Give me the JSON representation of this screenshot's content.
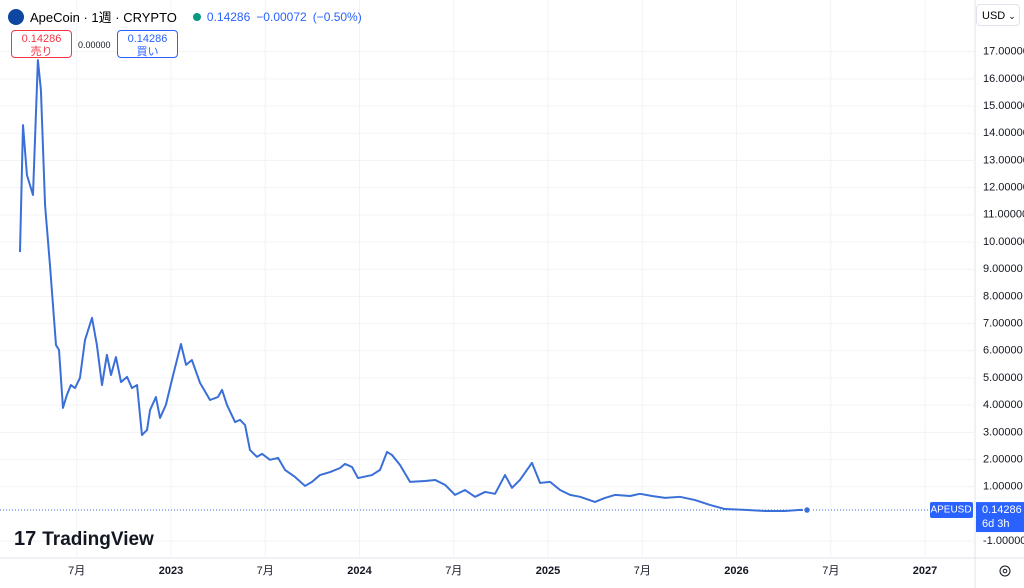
{
  "header": {
    "symbol": "ApeCoin · 1週 · CRYPTO",
    "price": "0.14286",
    "change": "−0.00072",
    "change_pct": "(−0.50%)"
  },
  "toolbar": {
    "sell_price": "0.14286",
    "sell_label": "売り",
    "spread": "0.00000",
    "buy_price": "0.14286",
    "buy_label": "買い",
    "currency": "USD"
  },
  "branding": "TradingView",
  "countdown": "6d 3h",
  "chart_data": {
    "type": "line",
    "x": [
      2022.199,
      2022.215,
      2022.236,
      2022.268,
      2022.294,
      2022.31,
      2022.332,
      2022.358,
      2022.39,
      2022.406,
      2022.427,
      2022.448,
      2022.469,
      2022.491,
      2022.517,
      2022.544,
      2022.581,
      2022.607,
      2022.634,
      2022.66,
      2022.682,
      2022.708,
      2022.735,
      2022.767,
      2022.793,
      2022.82,
      2022.846,
      2022.873,
      2022.889,
      2022.92,
      2022.942,
      2022.973,
      2023.005,
      2023.053,
      2023.08,
      2023.111,
      2023.154,
      2023.207,
      2023.249,
      2023.271,
      2023.297,
      2023.34,
      2023.366,
      2023.393,
      2023.419,
      2023.456,
      2023.483,
      2023.525,
      2023.568,
      2023.605,
      2023.658,
      2023.711,
      2023.748,
      2023.79,
      2023.844,
      2023.897,
      2023.923,
      2023.96,
      2023.992,
      2024.066,
      2024.109,
      2024.146,
      2024.172,
      2024.215,
      2024.268,
      2024.347,
      2024.401,
      2024.454,
      2024.507,
      2024.56,
      2024.613,
      2024.666,
      2024.719,
      2024.772,
      2024.809,
      2024.851,
      2024.915,
      2024.958,
      2025.011,
      2025.064,
      2025.117,
      2025.17,
      2025.249,
      2025.302,
      2025.355,
      2025.435,
      2025.488,
      2025.552,
      2025.621,
      2025.7,
      2025.78,
      2025.859,
      2025.939,
      2026.045,
      2026.151,
      2026.257,
      2026.337,
      2026.374
    ],
    "series": [
      {
        "name": "APEUSD",
        "color": "#3a6fd8",
        "values": [
          9.63,
          14.3,
          12.46,
          11.73,
          16.69,
          15.59,
          11.36,
          9.15,
          6.21,
          6.03,
          3.9,
          4.38,
          4.74,
          4.63,
          5.0,
          6.4,
          7.21,
          6.21,
          4.74,
          5.85,
          5.11,
          5.77,
          4.85,
          5.04,
          4.63,
          4.74,
          2.9,
          3.09,
          3.82,
          4.3,
          3.53,
          4.01,
          4.93,
          6.25,
          5.48,
          5.66,
          4.82,
          4.19,
          4.3,
          4.56,
          4.01,
          3.38,
          3.46,
          3.27,
          2.35,
          2.1,
          2.21,
          1.99,
          2.06,
          1.62,
          1.36,
          1.03,
          1.18,
          1.43,
          1.54,
          1.69,
          1.84,
          1.73,
          1.32,
          1.43,
          1.62,
          2.28,
          2.17,
          1.8,
          1.18,
          1.21,
          1.25,
          1.07,
          0.7,
          0.88,
          0.63,
          0.81,
          0.74,
          1.43,
          0.96,
          1.25,
          1.88,
          1.14,
          1.18,
          0.88,
          0.7,
          0.63,
          0.44,
          0.59,
          0.7,
          0.66,
          0.74,
          0.66,
          0.59,
          0.63,
          0.51,
          0.33,
          0.18,
          0.15,
          0.11,
          0.11,
          0.15,
          0.14286
        ]
      }
    ],
    "xlim": [
      2022.093,
      2027.265
    ],
    "xticks": [
      {
        "value": 2022.5,
        "label": "7月"
      },
      2023,
      {
        "value": 2023.5,
        "label": "7月"
      },
      2024,
      {
        "value": 2024.5,
        "label": "7月"
      },
      2025,
      {
        "value": 2025.5,
        "label": "7月"
      },
      2026,
      {
        "value": 2026.5,
        "label": "7月"
      },
      2027
    ],
    "ylim": [
      -1.62,
      17.98
    ],
    "yticks": [
      {
        "value": 17,
        "label": "17.00000"
      },
      {
        "value": 16,
        "label": "16.00000"
      },
      {
        "value": 15,
        "label": "15.00000"
      },
      {
        "value": 14,
        "label": "14.00000"
      },
      {
        "value": 13,
        "label": "13.00000"
      },
      {
        "value": 12,
        "label": "12.00000"
      },
      {
        "value": 11,
        "label": "11.00000"
      },
      {
        "value": 10,
        "label": "10.00000"
      },
      {
        "value": 9,
        "label": "9.00000"
      },
      {
        "value": 8,
        "label": "8.00000"
      },
      {
        "value": 7,
        "label": "7.00000"
      },
      {
        "value": 6,
        "label": "6.00000"
      },
      {
        "value": 5,
        "label": "5.00000"
      },
      {
        "value": 4,
        "label": "4.00000"
      },
      {
        "value": 3,
        "label": "3.00000"
      },
      {
        "value": 2,
        "label": "2.00000"
      },
      {
        "value": 1,
        "label": "1.00000"
      },
      {
        "value": -1,
        "label": "-1.00000"
      }
    ],
    "grid": true
  }
}
